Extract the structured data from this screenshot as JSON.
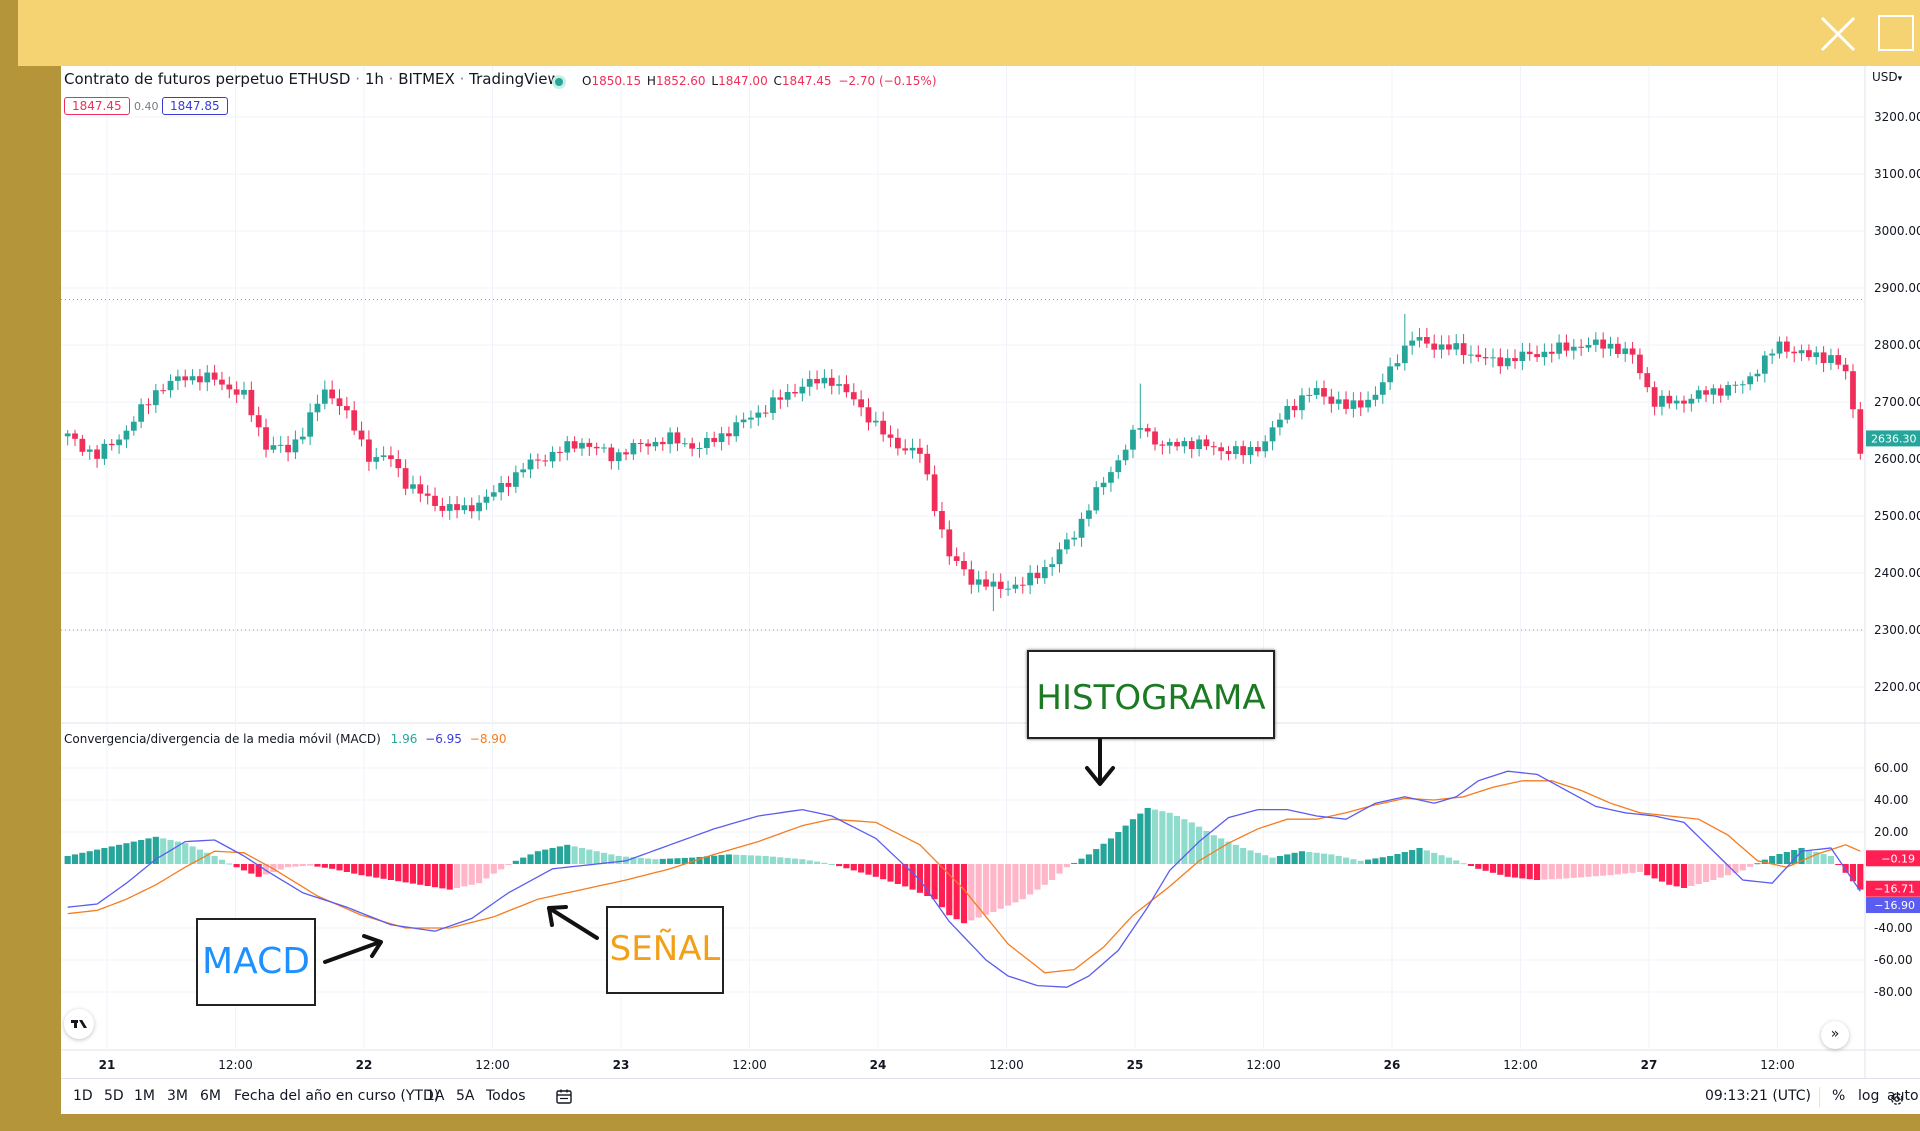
{
  "header": {
    "symbol_title": "Contrato de futuros perpetuo ETHUSD",
    "interval": "1h",
    "exchange": "BITMEX",
    "source": "TradingView",
    "ohlc": {
      "open_label": "O",
      "open": "1850.15",
      "high_label": "H",
      "high": "1852.60",
      "low_label": "L",
      "low": "1847.00",
      "close_label": "C",
      "close": "1847.45",
      "change": "−2.70 (−0.15%)"
    },
    "bid": "1847.45",
    "spread": "0.40",
    "ask": "1847.85"
  },
  "currency": "USD",
  "macd_legend": {
    "title": "Convergencia/divergencia de la media móvil (MACD)",
    "hist_value": "1.96",
    "macd_value": "−6.95",
    "signal_value": "−8.90"
  },
  "annotations": {
    "histograma": "HISTOGRAMA",
    "macd": "MACD",
    "senal": "SEÑAL"
  },
  "bottom_bar": {
    "timeframes": [
      "1D",
      "5D",
      "1M",
      "3M",
      "6M",
      "Fecha del año en curso (YTD)",
      "1A",
      "5A",
      "Todos"
    ],
    "clock": "09:13:21 (UTC)",
    "percent": "%",
    "log": "log",
    "auto": "auto"
  },
  "colors": {
    "up": "#26a69a",
    "down": "#ef2f5a",
    "hist_up_strong": "#26a69a",
    "hist_up_weak": "#8fdccd",
    "hist_down_strong": "#ff1f52",
    "hist_down_weak": "#ffb6c9",
    "macd_line": "#5b5cf0",
    "signal_line": "#f57c1f"
  },
  "chart_data": [
    {
      "type": "candlestick",
      "title": "Contrato de futuros perpetuo ETHUSD · 1h · BITMEX",
      "x_ticks": [
        "21",
        "12:00",
        "22",
        "12:00",
        "23",
        "12:00",
        "24",
        "12:00",
        "25",
        "12:00",
        "26",
        "12:00",
        "27",
        "12:00"
      ],
      "y_ticks": [
        "3200.00",
        "3100.00",
        "3000.00",
        "2900.00",
        "2800.00",
        "2700.00",
        "2600.00",
        "2500.00",
        "2400.00",
        "2300.00",
        "2200.00"
      ],
      "ylim": [
        2150,
        3250
      ],
      "last_price_label": "2636.30",
      "price_path": [
        [
          0,
          2640
        ],
        [
          4,
          2605
        ],
        [
          8,
          2650
        ],
        [
          12,
          2720
        ],
        [
          16,
          2745
        ],
        [
          20,
          2740
        ],
        [
          24,
          2710
        ],
        [
          27,
          2625
        ],
        [
          30,
          2615
        ],
        [
          32,
          2650
        ],
        [
          35,
          2720
        ],
        [
          37,
          2700
        ],
        [
          41,
          2605
        ],
        [
          44,
          2600
        ],
        [
          46,
          2560
        ],
        [
          50,
          2520
        ],
        [
          54,
          2510
        ],
        [
          58,
          2540
        ],
        [
          62,
          2585
        ],
        [
          66,
          2610
        ],
        [
          70,
          2630
        ],
        [
          74,
          2605
        ],
        [
          78,
          2625
        ],
        [
          82,
          2635
        ],
        [
          86,
          2620
        ],
        [
          90,
          2650
        ],
        [
          95,
          2690
        ],
        [
          100,
          2730
        ],
        [
          104,
          2740
        ],
        [
          108,
          2690
        ],
        [
          112,
          2630
        ],
        [
          116,
          2610
        ],
        [
          118,
          2520
        ],
        [
          120,
          2430
        ],
        [
          123,
          2390
        ],
        [
          126,
          2375
        ],
        [
          130,
          2380
        ],
        [
          134,
          2420
        ],
        [
          137,
          2470
        ],
        [
          140,
          2540
        ],
        [
          143,
          2600
        ],
        [
          146,
          2660
        ],
        [
          149,
          2620
        ],
        [
          152,
          2630
        ],
        [
          156,
          2620
        ],
        [
          160,
          2610
        ],
        [
          163,
          2630
        ],
        [
          166,
          2690
        ],
        [
          170,
          2720
        ],
        [
          174,
          2690
        ],
        [
          178,
          2710
        ],
        [
          181,
          2780
        ],
        [
          183,
          2810
        ],
        [
          186,
          2800
        ],
        [
          190,
          2790
        ],
        [
          194,
          2770
        ],
        [
          198,
          2780
        ],
        [
          202,
          2790
        ],
        [
          206,
          2800
        ],
        [
          210,
          2800
        ],
        [
          213,
          2780
        ],
        [
          216,
          2700
        ],
        [
          219,
          2700
        ],
        [
          224,
          2720
        ],
        [
          228,
          2730
        ],
        [
          230,
          2760
        ],
        [
          233,
          2800
        ],
        [
          237,
          2780
        ],
        [
          240,
          2780
        ],
        [
          242,
          2750
        ],
        [
          244,
          2620
        ]
      ],
      "candle_count": 245,
      "price_level_lines": [
        2880,
        2300
      ]
    },
    {
      "type": "macd",
      "title": "Convergencia/divergencia de la media móvil (MACD)",
      "y_ticks": [
        "60.00",
        "40.00",
        "20.00",
        "-40.00",
        "-60.00",
        "-80.00"
      ],
      "ylim": [
        -92,
        68
      ],
      "value_labels": [
        {
          "text": "−0.19",
          "value": -0.19
        },
        {
          "text": "−16.71",
          "value": -16.71
        },
        {
          "text": "−16.90",
          "value": -16.9
        }
      ],
      "histogram_path": [
        [
          0,
          5
        ],
        [
          4,
          9
        ],
        [
          8,
          13
        ],
        [
          12,
          17
        ],
        [
          16,
          13
        ],
        [
          20,
          5
        ],
        [
          23,
          -2
        ],
        [
          26,
          -8
        ],
        [
          30,
          -2
        ],
        [
          33,
          -1
        ],
        [
          36,
          -3
        ],
        [
          40,
          -7
        ],
        [
          44,
          -10
        ],
        [
          48,
          -13
        ],
        [
          52,
          -16
        ],
        [
          56,
          -12
        ],
        [
          58,
          -6
        ],
        [
          61,
          2
        ],
        [
          64,
          8
        ],
        [
          68,
          12
        ],
        [
          71,
          9
        ],
        [
          75,
          5
        ],
        [
          80,
          3
        ],
        [
          85,
          4
        ],
        [
          90,
          6
        ],
        [
          95,
          5
        ],
        [
          100,
          3
        ],
        [
          104,
          0
        ],
        [
          107,
          -4
        ],
        [
          110,
          -8
        ],
        [
          114,
          -14
        ],
        [
          118,
          -22
        ],
        [
          120,
          -32
        ],
        [
          122,
          -37
        ],
        [
          126,
          -30
        ],
        [
          130,
          -22
        ],
        [
          134,
          -10
        ],
        [
          136,
          -2
        ],
        [
          139,
          6
        ],
        [
          142,
          16
        ],
        [
          145,
          28
        ],
        [
          147,
          35
        ],
        [
          150,
          32
        ],
        [
          153,
          26
        ],
        [
          156,
          18
        ],
        [
          160,
          10
        ],
        [
          164,
          4
        ],
        [
          168,
          8
        ],
        [
          172,
          6
        ],
        [
          176,
          2
        ],
        [
          180,
          5
        ],
        [
          184,
          10
        ],
        [
          188,
          4
        ],
        [
          192,
          -3
        ],
        [
          196,
          -8
        ],
        [
          200,
          -10
        ],
        [
          204,
          -9
        ],
        [
          210,
          -7
        ],
        [
          214,
          -5
        ],
        [
          218,
          -13
        ],
        [
          220,
          -15
        ],
        [
          224,
          -10
        ],
        [
          228,
          -4
        ],
        [
          232,
          5
        ],
        [
          236,
          10
        ],
        [
          240,
          5
        ],
        [
          244,
          -16
        ]
      ],
      "macd_path": [
        [
          0,
          -27
        ],
        [
          4,
          -25
        ],
        [
          8,
          -12
        ],
        [
          12,
          3
        ],
        [
          16,
          14
        ],
        [
          20,
          15
        ],
        [
          24,
          5
        ],
        [
          27,
          -4
        ],
        [
          32,
          -18
        ],
        [
          38,
          -27
        ],
        [
          44,
          -38
        ],
        [
          50,
          -42
        ],
        [
          55,
          -34
        ],
        [
          60,
          -18
        ],
        [
          66,
          -3
        ],
        [
          70,
          -1
        ],
        [
          76,
          2
        ],
        [
          82,
          12
        ],
        [
          88,
          22
        ],
        [
          94,
          30
        ],
        [
          100,
          34
        ],
        [
          104,
          30
        ],
        [
          110,
          16
        ],
        [
          116,
          -10
        ],
        [
          120,
          -36
        ],
        [
          125,
          -60
        ],
        [
          128,
          -70
        ],
        [
          132,
          -76
        ],
        [
          136,
          -77
        ],
        [
          139,
          -70
        ],
        [
          143,
          -54
        ],
        [
          147,
          -27
        ],
        [
          150,
          -4
        ],
        [
          154,
          14
        ],
        [
          158,
          29
        ],
        [
          162,
          34
        ],
        [
          166,
          34
        ],
        [
          170,
          30
        ],
        [
          174,
          28
        ],
        [
          178,
          38
        ],
        [
          182,
          42
        ],
        [
          186,
          38
        ],
        [
          189,
          42
        ],
        [
          192,
          52
        ],
        [
          196,
          58
        ],
        [
          200,
          56
        ],
        [
          204,
          46
        ],
        [
          208,
          36
        ],
        [
          212,
          32
        ],
        [
          216,
          30
        ],
        [
          220,
          26
        ],
        [
          224,
          8
        ],
        [
          228,
          -10
        ],
        [
          232,
          -12
        ],
        [
          236,
          8
        ],
        [
          240,
          10
        ],
        [
          244,
          -17
        ]
      ],
      "signal_path": [
        [
          0,
          -31
        ],
        [
          4,
          -29
        ],
        [
          8,
          -22
        ],
        [
          12,
          -13
        ],
        [
          16,
          -2
        ],
        [
          20,
          8
        ],
        [
          24,
          7
        ],
        [
          28,
          -3
        ],
        [
          34,
          -20
        ],
        [
          40,
          -32
        ],
        [
          46,
          -40
        ],
        [
          52,
          -40
        ],
        [
          58,
          -33
        ],
        [
          64,
          -22
        ],
        [
          70,
          -16
        ],
        [
          76,
          -10
        ],
        [
          82,
          -3
        ],
        [
          88,
          6
        ],
        [
          94,
          14
        ],
        [
          100,
          24
        ],
        [
          104,
          28
        ],
        [
          110,
          26
        ],
        [
          116,
          12
        ],
        [
          122,
          -16
        ],
        [
          128,
          -50
        ],
        [
          133,
          -68
        ],
        [
          137,
          -66
        ],
        [
          141,
          -52
        ],
        [
          145,
          -32
        ],
        [
          150,
          -14
        ],
        [
          154,
          2
        ],
        [
          158,
          13
        ],
        [
          162,
          22
        ],
        [
          166,
          28
        ],
        [
          170,
          28
        ],
        [
          174,
          32
        ],
        [
          178,
          37
        ],
        [
          182,
          41
        ],
        [
          186,
          40
        ],
        [
          190,
          42
        ],
        [
          194,
          48
        ],
        [
          198,
          52
        ],
        [
          202,
          52
        ],
        [
          206,
          46
        ],
        [
          210,
          38
        ],
        [
          214,
          32
        ],
        [
          218,
          30
        ],
        [
          222,
          28
        ],
        [
          226,
          18
        ],
        [
          230,
          2
        ],
        [
          234,
          -2
        ],
        [
          238,
          6
        ],
        [
          242,
          12
        ],
        [
          244,
          8
        ]
      ]
    }
  ]
}
